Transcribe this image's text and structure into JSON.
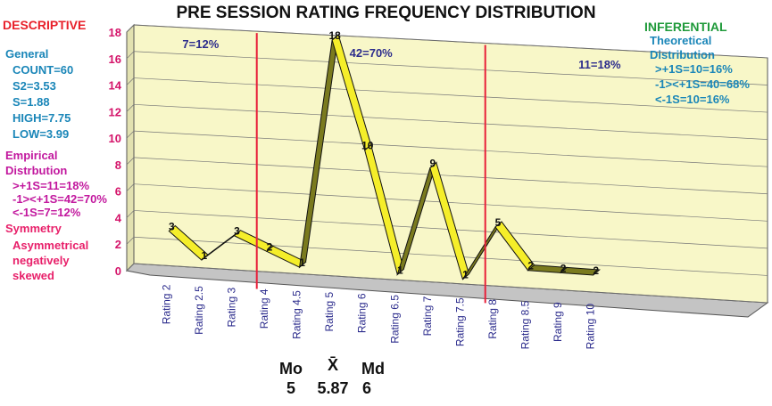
{
  "title": "PRE SESSION RATING FREQUENCY DISTRIBUTION",
  "descriptive": {
    "heading": "DESCRIPTIVE",
    "general_heading": "General",
    "general_lines": [
      "COUNT=60",
      "S2=3.53",
      "S=1.88",
      "HIGH=7.75",
      "LOW=3.99"
    ],
    "empirical_heading": "Empirical",
    "empirical_heading2": "Distrbution",
    "empirical_lines": [
      ">+1S=11=18%",
      "-1><+1S=42=70%",
      "<-1S=7=12%"
    ],
    "symmetry_heading": "Symmetry",
    "symmetry_lines": [
      "Asymmetrical",
      "negatively",
      "skewed"
    ]
  },
  "inferential": {
    "heading": "INFERENTIAL",
    "theoretical_lines": [
      "Theoretical",
      "Distribution"
    ],
    "dist_lines": [
      ">+1S=10=16%",
      "-1><+1S=40=68%",
      "<-1S=10=16%"
    ]
  },
  "stats": {
    "mode_label": "Mo",
    "mode_value": "5",
    "mean_label": "X̄",
    "mean_value": "5.87",
    "median_label": "Md",
    "median_value": "6"
  },
  "chart_data": {
    "type": "line",
    "categories": [
      "Rating 2",
      "Rating 2.5",
      "Rating 3",
      "Rating 4",
      "Rating 4.5",
      "Rating 5",
      "Rating 6",
      "Rating 6.5",
      "Rating 7",
      "Rating 7.5",
      "Rating 8",
      "Rating 8.5",
      "Rating 9",
      "Rating 10"
    ],
    "values": [
      3,
      1,
      3,
      2,
      1,
      18,
      10,
      1,
      9,
      1,
      5,
      2,
      2,
      2
    ],
    "ylim": [
      0,
      18
    ],
    "yticks": [
      "0",
      "2",
      "4",
      "6",
      "8",
      "10",
      "12",
      "14",
      "16",
      "18"
    ],
    "region_labels": [
      "7=12%",
      "42=70%",
      "11=18%"
    ],
    "boundaries_after_index": [
      2,
      9
    ],
    "colors": {
      "series": "#f5ee2a",
      "wall": "#f8f7c8",
      "floor": "#c4c4c4",
      "boundary": "#e8203a"
    }
  }
}
